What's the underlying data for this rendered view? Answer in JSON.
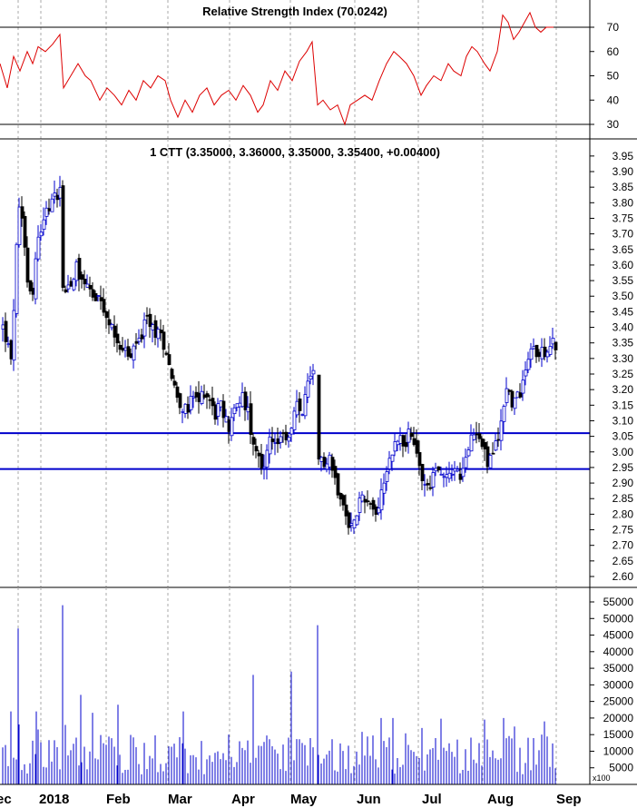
{
  "rsi_panel": {
    "title": "Relative Strength Index (70.0242)",
    "ticks": [
      70,
      60,
      50,
      40,
      30
    ],
    "ylim": [
      25,
      80
    ],
    "levels": [
      70,
      30
    ],
    "color": "#dd0000"
  },
  "price_panel": {
    "title": "1 CTT (3.35000, 3.36000, 3.35000, 3.35400, +0.00400)",
    "ticks": [
      "3.95",
      "3.90",
      "3.85",
      "3.80",
      "3.75",
      "3.70",
      "3.65",
      "3.60",
      "3.55",
      "3.50",
      "3.45",
      "3.40",
      "3.35",
      "3.30",
      "3.25",
      "3.20",
      "3.15",
      "3.10",
      "3.05",
      "3.00",
      "2.95",
      "2.90",
      "2.85",
      "2.80",
      "2.75",
      "2.70",
      "2.65",
      "2.60"
    ],
    "ylim": [
      2.575,
      3.975
    ],
    "support_lines": [
      3.06,
      2.945
    ],
    "up_color": "#0000cc",
    "down_color": "#000000",
    "line_color": "#0000cc"
  },
  "volume_panel": {
    "ticks": [
      "55000",
      "50000",
      "45000",
      "40000",
      "35000",
      "30000",
      "25000",
      "20000",
      "15000",
      "10000",
      "5000"
    ],
    "tick_values": [
      55000,
      50000,
      45000,
      40000,
      35000,
      30000,
      25000,
      20000,
      15000,
      10000,
      5000
    ],
    "ylim": [
      0,
      60000
    ],
    "unit_label": "x100",
    "color": "#0000cc"
  },
  "x_axis": {
    "labels": [
      "ec",
      "2018",
      "Feb",
      "Mar",
      "Apr",
      "May",
      "Jun",
      "Jul",
      "Aug",
      "Sep"
    ]
  },
  "chart_data": {
    "type": "candlestick",
    "x": "trading days, Dec 2017 – Aug 2018",
    "price_key_points": [
      {
        "date": "Dec",
        "close": 3.4
      },
      {
        "date": "Dec",
        "close": 3.85
      },
      {
        "date": "2018",
        "close": 3.88
      },
      {
        "date": "2018",
        "close": 3.5
      },
      {
        "date": "Feb",
        "close": 3.5
      },
      {
        "date": "Feb",
        "close": 3.3
      },
      {
        "date": "Mar",
        "close": 3.4
      },
      {
        "date": "Mar",
        "close": 3.12
      },
      {
        "date": "Apr",
        "close": 3.15
      },
      {
        "date": "Apr",
        "close": 2.95
      },
      {
        "date": "May",
        "close": 3.25
      },
      {
        "date": "May",
        "close": 2.95
      },
      {
        "date": "May",
        "close": 2.72
      },
      {
        "date": "Jun",
        "close": 2.85
      },
      {
        "date": "Jun",
        "close": 3.05
      },
      {
        "date": "Jul",
        "close": 2.9
      },
      {
        "date": "Jul",
        "close": 3.05
      },
      {
        "date": "Aug",
        "close": 2.9
      },
      {
        "date": "Aug",
        "close": 3.2
      },
      {
        "date": "Aug",
        "close": 3.35
      }
    ],
    "last": {
      "open": 3.35,
      "high": 3.36,
      "low": 3.35,
      "close": 3.354,
      "change": 0.004
    },
    "rsi_last": 70.0242
  }
}
